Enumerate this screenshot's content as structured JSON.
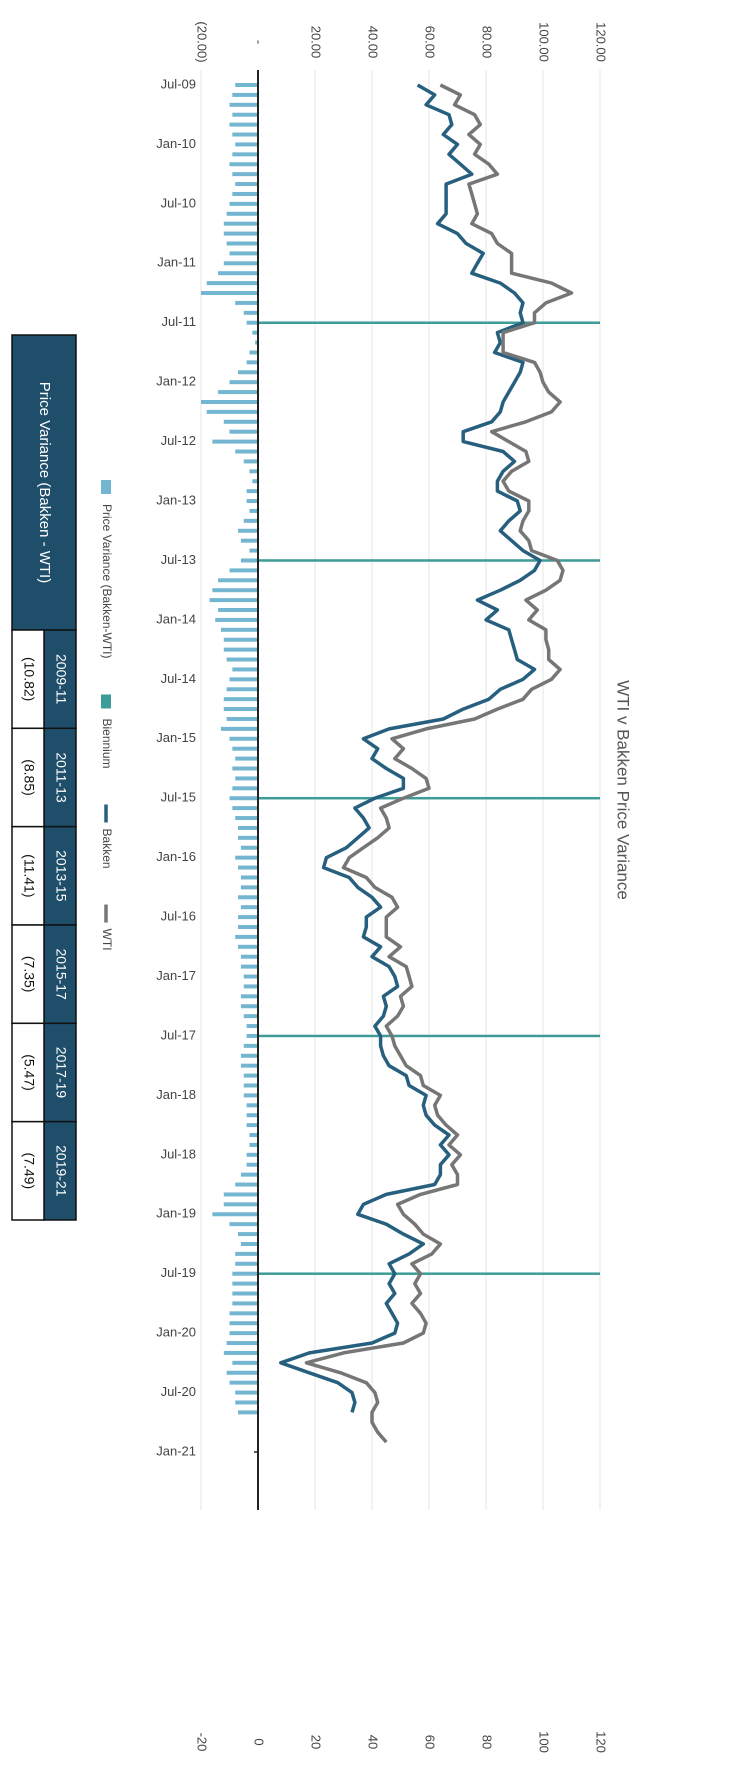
{
  "chart_data": {
    "type": "line",
    "title": "WTI v Bakken Price Variance",
    "categories": [
      "Jul-09",
      null,
      null,
      null,
      null,
      null,
      "Jan-10",
      null,
      null,
      null,
      null,
      null,
      "Jul-10",
      null,
      null,
      null,
      null,
      null,
      "Jan-11",
      null,
      null,
      null,
      null,
      null,
      "Jul-11",
      null,
      null,
      null,
      null,
      null,
      "Jan-12",
      null,
      null,
      null,
      null,
      null,
      "Jul-12",
      null,
      null,
      null,
      null,
      null,
      "Jan-13",
      null,
      null,
      null,
      null,
      null,
      "Jul-13",
      null,
      null,
      null,
      null,
      null,
      "Jan-14",
      null,
      null,
      null,
      null,
      null,
      "Jul-14",
      null,
      null,
      null,
      null,
      null,
      "Jan-15",
      null,
      null,
      null,
      null,
      null,
      "Jul-15",
      null,
      null,
      null,
      null,
      null,
      "Jan-16",
      null,
      null,
      null,
      null,
      null,
      "Jul-16",
      null,
      null,
      null,
      null,
      null,
      "Jan-17",
      null,
      null,
      null,
      null,
      null,
      "Jul-17",
      null,
      null,
      null,
      null,
      null,
      "Jan-18",
      null,
      null,
      null,
      null,
      null,
      "Jul-18",
      null,
      null,
      null,
      null,
      null,
      "Jan-19",
      null,
      null,
      null,
      null,
      null,
      "Jul-19",
      null,
      null,
      null,
      null,
      null,
      "Jan-20",
      null,
      null,
      null,
      null,
      null,
      "Jul-20",
      null,
      null,
      null,
      null,
      null,
      "Jan-21"
    ],
    "series": [
      {
        "name": "Price Variance (Bakken-WTI)",
        "type": "bar",
        "color": "#74b6d1",
        "values": [
          -8,
          -9,
          -10,
          -9,
          -10,
          -9,
          -8,
          -9,
          -10,
          -9,
          -8,
          -9,
          -10,
          -11,
          -12,
          -12,
          -11,
          -10,
          -12,
          -14,
          -18,
          -20,
          -8,
          -5,
          -4,
          -2,
          -1,
          -3,
          -4,
          -7,
          -10,
          -14,
          -20,
          -18,
          -12,
          -10,
          -16,
          -8,
          -5,
          -3,
          -2,
          -4,
          -4,
          -3,
          -5,
          -7,
          -6,
          -3,
          -6,
          -10,
          -14,
          -16,
          -17,
          -14,
          -15,
          -13,
          -12,
          -12,
          -11,
          -9,
          -10,
          -11,
          -12,
          -12,
          -11,
          -13,
          -10,
          -9,
          -8,
          -9,
          -8,
          -9,
          -10,
          -9,
          -8,
          -7,
          -7,
          -6,
          -8,
          -7,
          -6,
          -6,
          -7,
          -6,
          -7,
          -7,
          -8,
          -7,
          -6,
          -6,
          -5,
          -5,
          -6,
          -6,
          -5,
          -4,
          -4,
          -5,
          -6,
          -6,
          -5,
          -5,
          -5,
          -4,
          -4,
          -4,
          -3,
          -3,
          -4,
          -4,
          -6,
          -8,
          -12,
          -12,
          -16,
          -10,
          -7,
          -6,
          -8,
          -8,
          -9,
          -9,
          -9,
          -9,
          -10,
          -10,
          -10,
          -11,
          -12,
          -9,
          -11,
          -10,
          -8,
          -8,
          -7,
          null,
          null,
          null,
          null
        ]
      },
      {
        "name": "Biennium",
        "type": "bar",
        "axis": "y2",
        "color": "#3d9c98",
        "values": [
          null,
          null,
          null,
          null,
          null,
          null,
          null,
          null,
          null,
          null,
          null,
          null,
          null,
          null,
          null,
          null,
          null,
          null,
          null,
          null,
          null,
          null,
          null,
          null,
          120,
          null,
          null,
          null,
          null,
          null,
          null,
          null,
          null,
          null,
          null,
          null,
          null,
          null,
          null,
          null,
          null,
          null,
          null,
          null,
          null,
          null,
          null,
          null,
          120,
          null,
          null,
          null,
          null,
          null,
          null,
          null,
          null,
          null,
          null,
          null,
          null,
          null,
          null,
          null,
          null,
          null,
          null,
          null,
          null,
          null,
          null,
          null,
          120,
          null,
          null,
          null,
          null,
          null,
          null,
          null,
          null,
          null,
          null,
          null,
          null,
          null,
          null,
          null,
          null,
          null,
          null,
          null,
          null,
          null,
          null,
          null,
          120,
          null,
          null,
          null,
          null,
          null,
          null,
          null,
          null,
          null,
          null,
          null,
          null,
          null,
          null,
          null,
          null,
          null,
          null,
          null,
          null,
          null,
          null,
          null,
          120,
          null,
          null,
          null,
          null,
          null,
          null,
          null,
          null,
          null,
          null,
          null,
          null,
          null,
          null,
          null,
          null,
          null,
          null
        ]
      },
      {
        "name": "Bakken",
        "type": "line",
        "color": "#27607f",
        "values": [
          56,
          62,
          59,
          67,
          68,
          65,
          70,
          67,
          71,
          75,
          66,
          66,
          66,
          66,
          63,
          70,
          73,
          79,
          77,
          75,
          85,
          90,
          93,
          92,
          93,
          84,
          85,
          83,
          93,
          92,
          90,
          88,
          86,
          85,
          82,
          72,
          72,
          86,
          90,
          86,
          84,
          84,
          91,
          92,
          88,
          85,
          89,
          93,
          99,
          97,
          92,
          85,
          77,
          84,
          80,
          88,
          89,
          90,
          91,
          97,
          93,
          85,
          81,
          72,
          65,
          46,
          37,
          42,
          40,
          45,
          51,
          51,
          41,
          34,
          37,
          39,
          35,
          31,
          24,
          23,
          32,
          35,
          40,
          43,
          38,
          38,
          37,
          43,
          40,
          46,
          48,
          49,
          44,
          45,
          44,
          41,
          43,
          43,
          44,
          46,
          52,
          53,
          59,
          58,
          59,
          62,
          67,
          64,
          67,
          64,
          64,
          62,
          45,
          37,
          35,
          45,
          51,
          58,
          53,
          46,
          48,
          46,
          48,
          45,
          47,
          49,
          48,
          40,
          18,
          8,
          18,
          28,
          33,
          34,
          33,
          null,
          null,
          null,
          null
        ]
      },
      {
        "name": "WTI",
        "type": "line",
        "color": "#767676",
        "values": [
          64,
          71,
          69,
          76,
          78,
          74,
          78,
          76,
          81,
          84,
          74,
          75,
          76,
          77,
          75,
          82,
          84,
          89,
          89,
          89,
          103,
          110,
          101,
          97,
          97,
          86,
          86,
          86,
          97,
          99,
          100,
          102,
          106,
          103,
          94,
          82,
          88,
          94,
          95,
          89,
          86,
          88,
          95,
          95,
          93,
          92,
          95,
          96,
          105,
          107,
          106,
          101,
          94,
          98,
          95,
          101,
          101,
          102,
          102,
          106,
          103,
          96,
          93,
          84,
          76,
          59,
          47,
          51,
          48,
          54,
          59,
          60,
          51,
          43,
          45,
          46,
          42,
          37,
          32,
          30,
          38,
          41,
          47,
          49,
          45,
          45,
          45,
          50,
          46,
          52,
          53,
          54,
          50,
          51,
          49,
          45,
          47,
          48,
          50,
          52,
          57,
          58,
          64,
          62,
          63,
          66,
          70,
          67,
          71,
          68,
          70,
          70,
          57,
          49,
          51,
          55,
          58,
          64,
          61,
          54,
          57,
          55,
          57,
          54,
          57,
          59,
          58,
          51,
          30,
          17,
          29,
          38,
          41,
          42,
          40,
          40,
          42,
          45,
          null
        ]
      }
    ],
    "ylim": [
      -20,
      120
    ],
    "yticks": [
      {
        "value": -20,
        "label": "(20.00)"
      },
      {
        "value": 0,
        "label": "-"
      },
      {
        "value": 20,
        "label": "20.00"
      },
      {
        "value": 40,
        "label": "40.00"
      },
      {
        "value": 60,
        "label": "60.00"
      },
      {
        "value": 80,
        "label": "80.00"
      },
      {
        "value": 100,
        "label": "100.00"
      },
      {
        "value": 120,
        "label": "120.00"
      }
    ],
    "y2lim": [
      -20,
      120
    ],
    "y2ticks": [
      -20,
      0,
      20,
      40,
      60,
      80,
      100,
      120
    ],
    "grid": true,
    "legend": "bottom"
  },
  "table": {
    "label": "Price Variance (Bakken - WTI)",
    "columns": [
      "2009-11",
      "2011-13",
      "2013-15",
      "2015-17",
      "2017-19",
      "2019-21"
    ],
    "values": [
      "(10.82)",
      "(8.85)",
      "(11.41)",
      "(7.35)",
      "(5.47)",
      "(7.49)"
    ]
  }
}
